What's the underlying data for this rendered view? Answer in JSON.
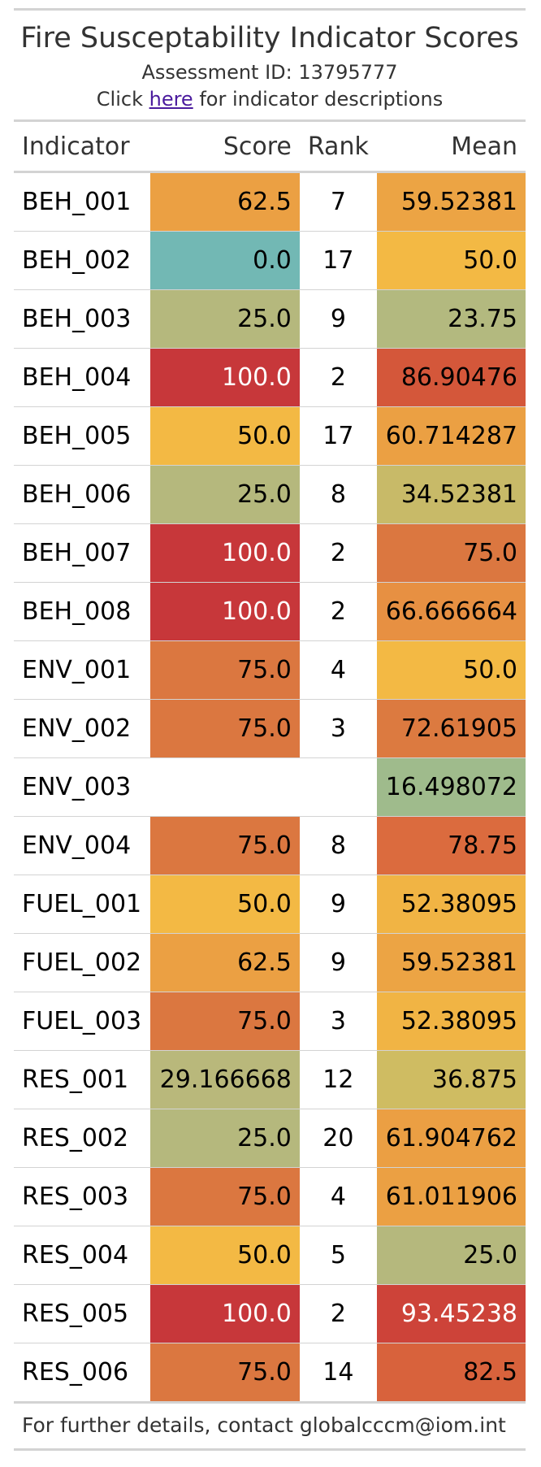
{
  "header": {
    "title": "Fire Susceptability Indicator Scores",
    "subtitle": "Assessment ID: 13795777",
    "link_prefix": "Click",
    "link_text": "here",
    "link_suffix": "for indicator descriptions"
  },
  "table": {
    "columns": [
      "Indicator",
      "Score",
      "Rank",
      "Mean"
    ],
    "rows": [
      {
        "indicator": "BEH_001",
        "score": "62.5",
        "score_color": "#eba043",
        "rank": "7",
        "mean": "59.52381",
        "mean_color": "#eca444"
      },
      {
        "indicator": "BEH_002",
        "score": "0.0",
        "score_color": "#72b8b4",
        "rank": "17",
        "mean": "50.0",
        "mean_color": "#f3b944"
      },
      {
        "indicator": "BEH_003",
        "score": "25.0",
        "score_color": "#b5b87d",
        "rank": "9",
        "mean": "23.75",
        "mean_color": "#b3b97f"
      },
      {
        "indicator": "BEH_004",
        "score": "100.0",
        "score_color": "#c7373a",
        "rank": "2",
        "mean": "86.90476",
        "mean_color": "#d4573a"
      },
      {
        "indicator": "BEH_005",
        "score": "50.0",
        "score_color": "#f3b944",
        "rank": "17",
        "mean": "60.714287",
        "mean_color": "#eba043"
      },
      {
        "indicator": "BEH_006",
        "score": "25.0",
        "score_color": "#b5b87d",
        "rank": "8",
        "mean": "34.52381",
        "mean_color": "#c8ba68"
      },
      {
        "indicator": "BEH_007",
        "score": "100.0",
        "score_color": "#c7373a",
        "rank": "2",
        "mean": "75.0",
        "mean_color": "#db7740"
      },
      {
        "indicator": "BEH_008",
        "score": "100.0",
        "score_color": "#c7373a",
        "rank": "2",
        "mean": "66.666664",
        "mean_color": "#e79042"
      },
      {
        "indicator": "ENV_001",
        "score": "75.0",
        "score_color": "#db7740",
        "rank": "4",
        "mean": "50.0",
        "mean_color": "#f3b944"
      },
      {
        "indicator": "ENV_002",
        "score": "75.0",
        "score_color": "#db7740",
        "rank": "3",
        "mean": "72.61905",
        "mean_color": "#dc7a40"
      },
      {
        "indicator": "ENV_003",
        "score": null,
        "score_color": null,
        "rank": null,
        "mean": "16.498072",
        "mean_color": "#9fbb8c"
      },
      {
        "indicator": "ENV_004",
        "score": "75.0",
        "score_color": "#db7740",
        "rank": "8",
        "mean": "78.75",
        "mean_color": "#db6b3e"
      },
      {
        "indicator": "FUEL_001",
        "score": "50.0",
        "score_color": "#f3b944",
        "rank": "9",
        "mean": "52.38095",
        "mean_color": "#f1b444"
      },
      {
        "indicator": "FUEL_002",
        "score": "62.5",
        "score_color": "#eba043",
        "rank": "9",
        "mean": "59.52381",
        "mean_color": "#eca444"
      },
      {
        "indicator": "FUEL_003",
        "score": "75.0",
        "score_color": "#db7740",
        "rank": "3",
        "mean": "52.38095",
        "mean_color": "#f1b444"
      },
      {
        "indicator": "RES_001",
        "score": "29.166668",
        "score_color": "#b9b87b",
        "rank": "12",
        "mean": "36.875",
        "mean_color": "#cfbc62"
      },
      {
        "indicator": "RES_002",
        "score": "25.0",
        "score_color": "#b5b87d",
        "rank": "20",
        "mean": "61.904762",
        "mean_color": "#eb9f43"
      },
      {
        "indicator": "RES_003",
        "score": "75.0",
        "score_color": "#db7740",
        "rank": "4",
        "mean": "61.011906",
        "mean_color": "#eba043"
      },
      {
        "indicator": "RES_004",
        "score": "50.0",
        "score_color": "#f3b944",
        "rank": "5",
        "mean": "25.0",
        "mean_color": "#b5b87d"
      },
      {
        "indicator": "RES_005",
        "score": "100.0",
        "score_color": "#c7373a",
        "rank": "2",
        "mean": "93.45238",
        "mean_color": "#cd4339"
      },
      {
        "indicator": "RES_006",
        "score": "75.0",
        "score_color": "#db7740",
        "rank": "14",
        "mean": "82.5",
        "mean_color": "#d8623c"
      }
    ]
  },
  "footer": {
    "text": "For further details, contact globalcccm@iom.int"
  }
}
